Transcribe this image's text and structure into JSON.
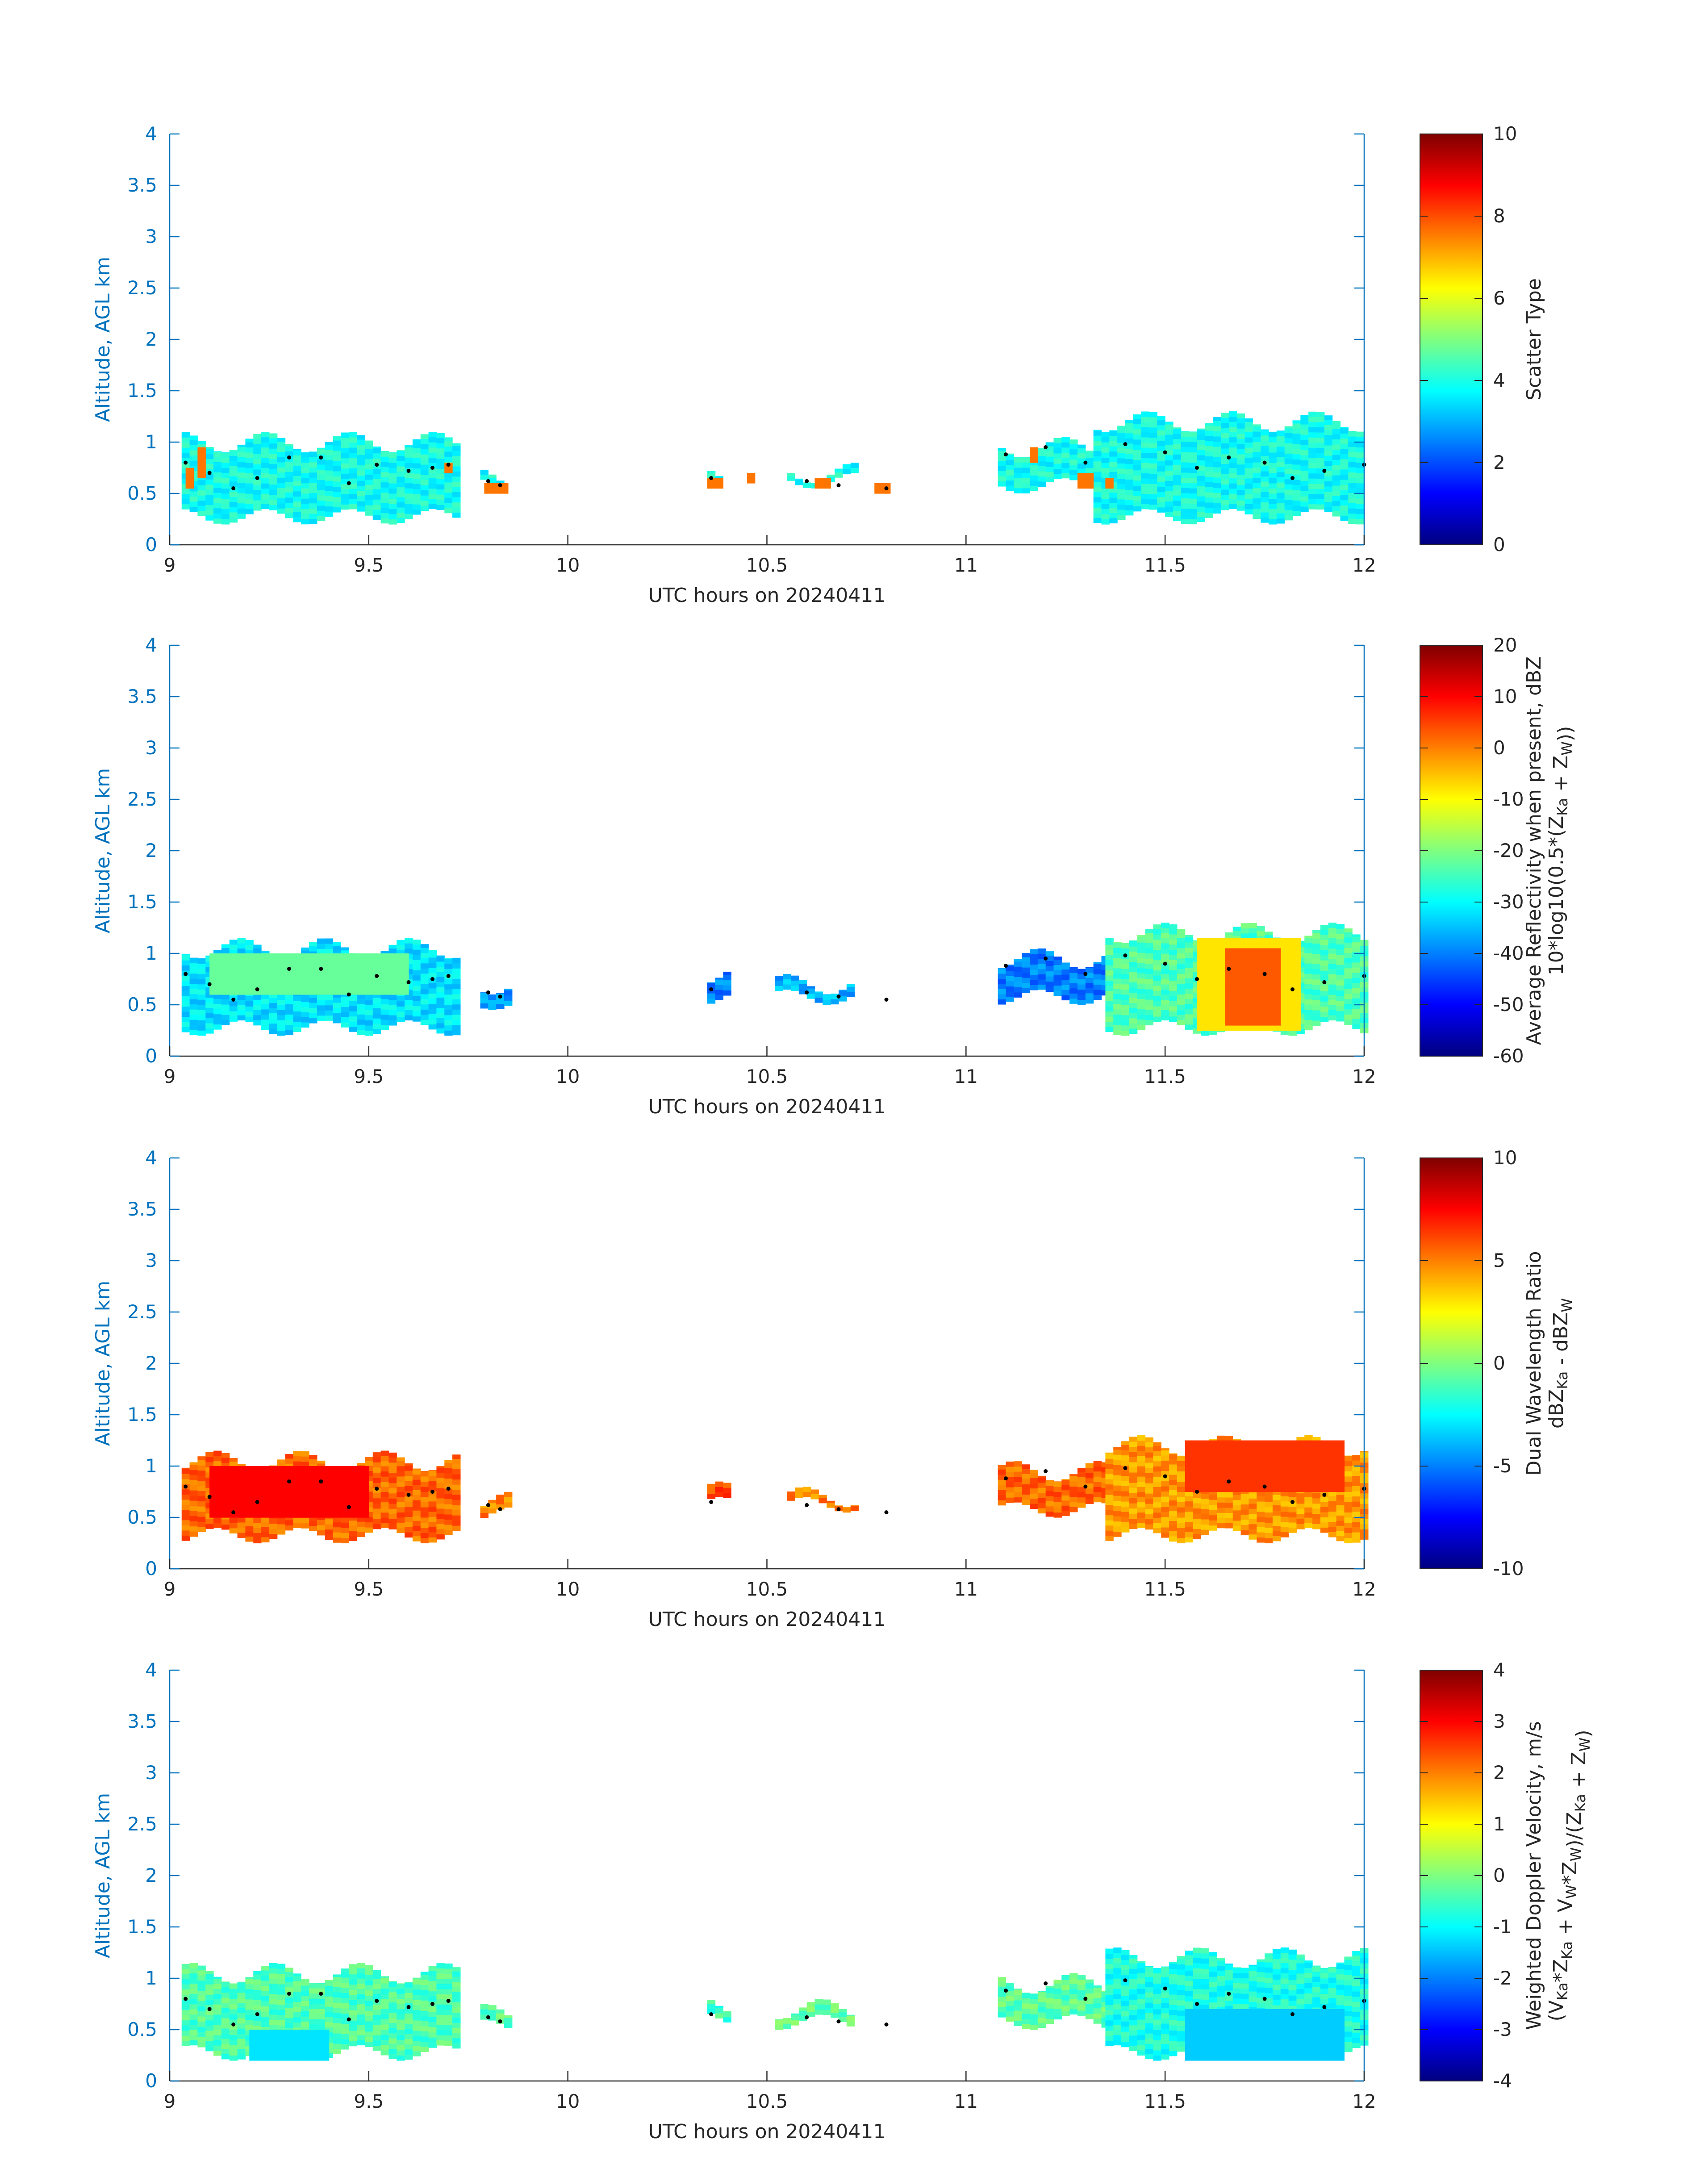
{
  "colors": {
    "axis_blue": "#0072bd",
    "text_dark": "#262626",
    "trajectory": "#000000"
  },
  "chart_data": [
    {
      "type": "heatmap",
      "panel": "scatter-type",
      "xlabel": "UTC hours on 20240411",
      "ylabel": "Altitude, AGL km",
      "xlim": [
        9,
        12
      ],
      "ylim": [
        0,
        4
      ],
      "xticks": [
        "9",
        "9.5",
        "10",
        "10.5",
        "11",
        "11.5",
        "12"
      ],
      "yticks": [
        "0",
        "0.5",
        "1",
        "1.5",
        "2",
        "2.5",
        "3",
        "3.5",
        "4"
      ],
      "colorbar": {
        "label": [
          "Scatter Type"
        ],
        "range": [
          0,
          10
        ],
        "ticks": [
          "0",
          "2",
          "4",
          "6",
          "8",
          "10"
        ]
      },
      "segments": [
        {
          "t0": 9.03,
          "t1": 9.72,
          "bottom": 0.2,
          "top": 1.1,
          "value": 3.9
        },
        {
          "t0": 9.78,
          "t1": 9.84,
          "bottom": 0.5,
          "top": 0.75,
          "value": 3.9
        },
        {
          "t0": 10.35,
          "t1": 10.39,
          "bottom": 0.55,
          "top": 0.85,
          "value": 3.9
        },
        {
          "t0": 10.55,
          "t1": 10.72,
          "bottom": 0.55,
          "top": 0.8,
          "value": 3.9
        },
        {
          "t0": 11.08,
          "t1": 11.32,
          "bottom": 0.5,
          "top": 1.05,
          "value": 3.9
        },
        {
          "t0": 11.32,
          "t1": 12.0,
          "bottom": 0.2,
          "top": 1.3,
          "value": 3.9
        }
      ],
      "highlights": [
        {
          "t0": 9.04,
          "t1": 9.06,
          "bottom": 0.55,
          "top": 0.75,
          "value": 7.6
        },
        {
          "t0": 9.07,
          "t1": 9.09,
          "bottom": 0.65,
          "top": 0.95,
          "value": 7.6
        },
        {
          "t0": 9.69,
          "t1": 9.71,
          "bottom": 0.7,
          "top": 0.8,
          "value": 7.6
        },
        {
          "t0": 9.79,
          "t1": 9.84,
          "bottom": 0.5,
          "top": 0.6,
          "value": 7.6
        },
        {
          "t0": 10.35,
          "t1": 10.39,
          "bottom": 0.55,
          "top": 0.65,
          "value": 7.6
        },
        {
          "t0": 10.45,
          "t1": 10.47,
          "bottom": 0.6,
          "top": 0.7,
          "value": 7.6
        },
        {
          "t0": 10.62,
          "t1": 10.66,
          "bottom": 0.55,
          "top": 0.65,
          "value": 7.6
        },
        {
          "t0": 10.77,
          "t1": 10.8,
          "bottom": 0.5,
          "top": 0.6,
          "value": 7.6
        },
        {
          "t0": 11.16,
          "t1": 11.18,
          "bottom": 0.8,
          "top": 0.95,
          "value": 7.6
        },
        {
          "t0": 11.28,
          "t1": 11.31,
          "bottom": 0.55,
          "top": 0.7,
          "value": 7.6
        },
        {
          "t0": 11.35,
          "t1": 11.37,
          "bottom": 0.55,
          "top": 0.65,
          "value": 7.6
        }
      ],
      "trajectory": [
        [
          9.04,
          0.8
        ],
        [
          9.1,
          0.7
        ],
        [
          9.16,
          0.55
        ],
        [
          9.22,
          0.65
        ],
        [
          9.3,
          0.85
        ],
        [
          9.38,
          0.85
        ],
        [
          9.45,
          0.6
        ],
        [
          9.52,
          0.78
        ],
        [
          9.6,
          0.72
        ],
        [
          9.66,
          0.75
        ],
        [
          9.7,
          0.78
        ],
        [
          9.8,
          0.62
        ],
        [
          9.83,
          0.58
        ],
        [
          10.36,
          0.65
        ],
        [
          10.6,
          0.62
        ],
        [
          10.68,
          0.58
        ],
        [
          10.8,
          0.55
        ],
        [
          11.1,
          0.88
        ],
        [
          11.2,
          0.95
        ],
        [
          11.3,
          0.8
        ],
        [
          11.4,
          0.98
        ],
        [
          11.5,
          0.9
        ],
        [
          11.58,
          0.75
        ],
        [
          11.66,
          0.85
        ],
        [
          11.75,
          0.8
        ],
        [
          11.82,
          0.65
        ],
        [
          11.9,
          0.72
        ],
        [
          12.0,
          0.78
        ]
      ]
    },
    {
      "type": "heatmap",
      "panel": "reflectivity",
      "xlabel": "UTC hours on 20240411",
      "ylabel": "Altitude, AGL km",
      "xlim": [
        9,
        12
      ],
      "ylim": [
        0,
        4
      ],
      "xticks": [
        "9",
        "9.5",
        "10",
        "10.5",
        "11",
        "11.5",
        "12"
      ],
      "yticks": [
        "0",
        "0.5",
        "1",
        "1.5",
        "2",
        "2.5",
        "3",
        "3.5",
        "4"
      ],
      "colorbar": {
        "label": [
          "Average Reflectivity when present, dBZ",
          "10*log10(0.5*(Z_Ka + Z_W))"
        ],
        "range": [
          -60,
          20
        ],
        "ticks": [
          "-60",
          "-50",
          "-40",
          "-30",
          "-20",
          "-10",
          "0",
          "10",
          "20"
        ]
      },
      "segments": [
        {
          "t0": 9.03,
          "t1": 9.72,
          "bottom": 0.2,
          "top": 1.15,
          "value": -32
        },
        {
          "t0": 9.78,
          "t1": 9.85,
          "bottom": 0.45,
          "top": 0.8,
          "value": -38
        },
        {
          "t0": 10.35,
          "t1": 10.4,
          "bottom": 0.5,
          "top": 0.9,
          "value": -40
        },
        {
          "t0": 10.52,
          "t1": 10.72,
          "bottom": 0.5,
          "top": 0.8,
          "value": -36
        },
        {
          "t0": 11.08,
          "t1": 11.35,
          "bottom": 0.5,
          "top": 1.05,
          "value": -40
        },
        {
          "t0": 11.35,
          "t1": 12.0,
          "bottom": 0.2,
          "top": 1.3,
          "value": -24
        }
      ],
      "highlights": [
        {
          "t0": 11.58,
          "t1": 11.84,
          "bottom": 0.25,
          "top": 1.15,
          "value": -8
        },
        {
          "t0": 11.65,
          "t1": 11.78,
          "bottom": 0.3,
          "top": 1.05,
          "value": 3
        },
        {
          "t0": 9.1,
          "t1": 9.6,
          "bottom": 0.6,
          "top": 1.0,
          "value": -22
        }
      ],
      "trajectory": [
        [
          9.04,
          0.8
        ],
        [
          9.1,
          0.7
        ],
        [
          9.16,
          0.55
        ],
        [
          9.22,
          0.65
        ],
        [
          9.3,
          0.85
        ],
        [
          9.38,
          0.85
        ],
        [
          9.45,
          0.6
        ],
        [
          9.52,
          0.78
        ],
        [
          9.6,
          0.72
        ],
        [
          9.66,
          0.75
        ],
        [
          9.7,
          0.78
        ],
        [
          9.8,
          0.62
        ],
        [
          9.83,
          0.58
        ],
        [
          10.36,
          0.65
        ],
        [
          10.6,
          0.62
        ],
        [
          10.68,
          0.58
        ],
        [
          10.8,
          0.55
        ],
        [
          11.1,
          0.88
        ],
        [
          11.2,
          0.95
        ],
        [
          11.3,
          0.8
        ],
        [
          11.4,
          0.98
        ],
        [
          11.5,
          0.9
        ],
        [
          11.58,
          0.75
        ],
        [
          11.66,
          0.85
        ],
        [
          11.75,
          0.8
        ],
        [
          11.82,
          0.65
        ],
        [
          11.9,
          0.72
        ],
        [
          12.0,
          0.78
        ]
      ]
    },
    {
      "type": "heatmap",
      "panel": "dual-wavelength-ratio",
      "xlabel": "UTC hours on 20240411",
      "ylabel": "Altitude, AGL km",
      "xlim": [
        9,
        12
      ],
      "ylim": [
        0,
        4
      ],
      "xticks": [
        "9",
        "9.5",
        "10",
        "10.5",
        "11",
        "11.5",
        "12"
      ],
      "yticks": [
        "0",
        "0.5",
        "1",
        "1.5",
        "2",
        "2.5",
        "3",
        "3.5",
        "4"
      ],
      "colorbar": {
        "label": [
          "Dual Wavelength Ratio",
          "dBZ_Ka - dBZ_W"
        ],
        "range": [
          -10,
          10
        ],
        "ticks": [
          "-10",
          "-5",
          "0",
          "5",
          "10"
        ]
      },
      "segments": [
        {
          "t0": 9.03,
          "t1": 9.72,
          "bottom": 0.25,
          "top": 1.15,
          "value": 5.5
        },
        {
          "t0": 9.78,
          "t1": 9.85,
          "bottom": 0.45,
          "top": 0.75,
          "value": 5.0
        },
        {
          "t0": 10.35,
          "t1": 10.4,
          "bottom": 0.55,
          "top": 0.85,
          "value": 6.0
        },
        {
          "t0": 10.55,
          "t1": 10.72,
          "bottom": 0.55,
          "top": 0.8,
          "value": 5.0
        },
        {
          "t0": 11.08,
          "t1": 11.35,
          "bottom": 0.5,
          "top": 1.05,
          "value": 5.5
        },
        {
          "t0": 11.35,
          "t1": 12.0,
          "bottom": 0.25,
          "top": 1.3,
          "value": 4.5
        }
      ],
      "highlights": [
        {
          "t0": 9.1,
          "t1": 9.5,
          "bottom": 0.5,
          "top": 1.0,
          "value": 7.5
        },
        {
          "t0": 11.55,
          "t1": 11.95,
          "bottom": 0.75,
          "top": 1.25,
          "value": 6.5
        }
      ],
      "trajectory": [
        [
          9.04,
          0.8
        ],
        [
          9.1,
          0.7
        ],
        [
          9.16,
          0.55
        ],
        [
          9.22,
          0.65
        ],
        [
          9.3,
          0.85
        ],
        [
          9.38,
          0.85
        ],
        [
          9.45,
          0.6
        ],
        [
          9.52,
          0.78
        ],
        [
          9.6,
          0.72
        ],
        [
          9.66,
          0.75
        ],
        [
          9.7,
          0.78
        ],
        [
          9.8,
          0.62
        ],
        [
          9.83,
          0.58
        ],
        [
          10.36,
          0.65
        ],
        [
          10.6,
          0.62
        ],
        [
          10.68,
          0.58
        ],
        [
          10.8,
          0.55
        ],
        [
          11.1,
          0.88
        ],
        [
          11.2,
          0.95
        ],
        [
          11.3,
          0.8
        ],
        [
          11.4,
          0.98
        ],
        [
          11.5,
          0.9
        ],
        [
          11.58,
          0.75
        ],
        [
          11.66,
          0.85
        ],
        [
          11.75,
          0.8
        ],
        [
          11.82,
          0.65
        ],
        [
          11.9,
          0.72
        ],
        [
          12.0,
          0.78
        ]
      ]
    },
    {
      "type": "heatmap",
      "panel": "doppler-velocity",
      "xlabel": "UTC hours on 20240411",
      "ylabel": "Altitude, AGL km",
      "xlim": [
        9,
        12
      ],
      "ylim": [
        0,
        4
      ],
      "xticks": [
        "9",
        "9.5",
        "10",
        "10.5",
        "11",
        "11.5",
        "12"
      ],
      "yticks": [
        "0",
        "0.5",
        "1",
        "1.5",
        "2",
        "2.5",
        "3",
        "3.5",
        "4"
      ],
      "colorbar": {
        "label": [
          "Weighted Doppler Velocity, m/s",
          "(V_Ka*Z_Ka + V_W*Z_W)/(Z_Ka + Z_W)"
        ],
        "range": [
          -4,
          4
        ],
        "ticks": [
          "-4",
          "-3",
          "-2",
          "-1",
          "0",
          "1",
          "2",
          "3",
          "4"
        ]
      },
      "segments": [
        {
          "t0": 9.03,
          "t1": 9.72,
          "bottom": 0.2,
          "top": 1.15,
          "value": -0.4
        },
        {
          "t0": 9.78,
          "t1": 9.85,
          "bottom": 0.45,
          "top": 0.75,
          "value": -0.3
        },
        {
          "t0": 10.35,
          "t1": 10.4,
          "bottom": 0.55,
          "top": 0.85,
          "value": -0.5
        },
        {
          "t0": 10.52,
          "t1": 10.72,
          "bottom": 0.5,
          "top": 0.8,
          "value": -0.2
        },
        {
          "t0": 11.08,
          "t1": 11.35,
          "bottom": 0.5,
          "top": 1.05,
          "value": -0.3
        },
        {
          "t0": 11.35,
          "t1": 12.0,
          "bottom": 0.2,
          "top": 1.3,
          "value": -0.8
        }
      ],
      "highlights": [
        {
          "t0": 11.55,
          "t1": 11.95,
          "bottom": 0.2,
          "top": 0.7,
          "value": -1.4
        },
        {
          "t0": 9.2,
          "t1": 9.4,
          "bottom": 0.2,
          "top": 0.5,
          "value": -1.2
        }
      ],
      "trajectory": [
        [
          9.04,
          0.8
        ],
        [
          9.1,
          0.7
        ],
        [
          9.16,
          0.55
        ],
        [
          9.22,
          0.65
        ],
        [
          9.3,
          0.85
        ],
        [
          9.38,
          0.85
        ],
        [
          9.45,
          0.6
        ],
        [
          9.52,
          0.78
        ],
        [
          9.6,
          0.72
        ],
        [
          9.66,
          0.75
        ],
        [
          9.7,
          0.78
        ],
        [
          9.8,
          0.62
        ],
        [
          9.83,
          0.58
        ],
        [
          10.36,
          0.65
        ],
        [
          10.6,
          0.62
        ],
        [
          10.68,
          0.58
        ],
        [
          10.8,
          0.55
        ],
        [
          11.1,
          0.88
        ],
        [
          11.2,
          0.95
        ],
        [
          11.3,
          0.8
        ],
        [
          11.4,
          0.98
        ],
        [
          11.5,
          0.9
        ],
        [
          11.58,
          0.75
        ],
        [
          11.66,
          0.85
        ],
        [
          11.75,
          0.8
        ],
        [
          11.82,
          0.65
        ],
        [
          11.9,
          0.72
        ],
        [
          12.0,
          0.78
        ]
      ]
    }
  ]
}
